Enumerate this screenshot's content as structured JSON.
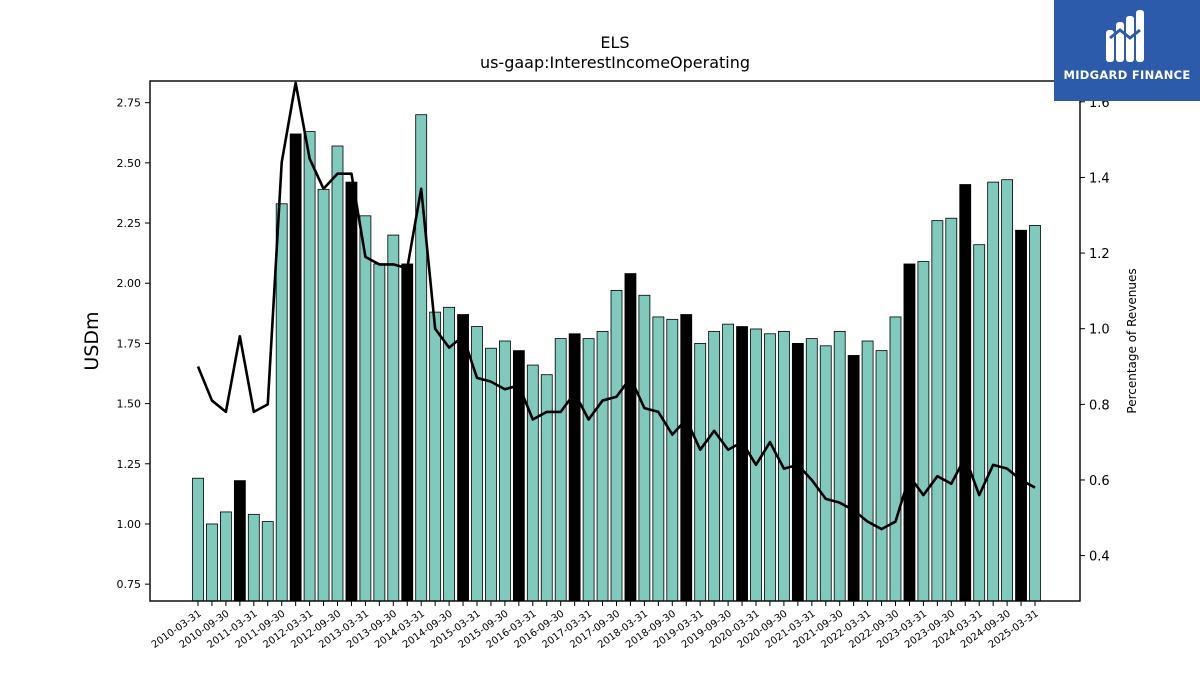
{
  "chart_data": {
    "type": "bar",
    "title": "ELS",
    "subtitle": "us-gaap:InterestIncomeOperating",
    "ylabel": "USDm",
    "y2label": "Percentage of Revenues",
    "ylim": [
      0.68,
      2.84
    ],
    "y2lim": [
      0.28,
      1.655
    ],
    "yticks": [
      0.75,
      1.0,
      1.25,
      1.5,
      1.75,
      2.0,
      2.25,
      2.5,
      2.75
    ],
    "y2ticks": [
      0.4,
      0.6,
      0.8,
      1.0,
      1.2,
      1.4,
      1.6
    ],
    "categories": [
      "2010-03-31",
      "2010-06-30",
      "2010-09-30",
      "2010-12-31",
      "2011-03-31",
      "2011-06-30",
      "2011-09-30",
      "2011-12-31",
      "2012-03-31",
      "2012-06-30",
      "2012-09-30",
      "2012-12-31",
      "2013-03-31",
      "2013-06-30",
      "2013-09-30",
      "2013-12-31",
      "2014-03-31",
      "2014-06-30",
      "2014-09-30",
      "2014-12-31",
      "2015-03-31",
      "2015-06-30",
      "2015-09-30",
      "2015-12-31",
      "2016-03-31",
      "2016-06-30",
      "2016-09-30",
      "2016-12-31",
      "2017-03-31",
      "2017-06-30",
      "2017-09-30",
      "2017-12-31",
      "2018-03-31",
      "2018-06-30",
      "2018-09-30",
      "2018-12-31",
      "2019-03-31",
      "2019-06-30",
      "2019-09-30",
      "2019-12-31",
      "2020-03-31",
      "2020-06-30",
      "2020-09-30",
      "2020-12-31",
      "2021-03-31",
      "2021-06-30",
      "2021-09-30",
      "2021-12-31",
      "2022-03-31",
      "2022-06-30",
      "2022-09-30",
      "2022-12-31",
      "2023-03-31",
      "2023-06-30",
      "2023-09-30",
      "2023-12-31",
      "2024-03-31",
      "2024-06-30",
      "2024-09-30",
      "2024-12-31",
      "2025-03-31"
    ],
    "series": [
      {
        "type": "bar",
        "values": [
          1.19,
          1.0,
          1.05,
          1.18,
          1.04,
          1.01,
          2.33,
          2.62,
          2.63,
          2.39,
          2.57,
          2.42,
          2.28,
          2.08,
          2.2,
          2.08,
          2.7,
          1.88,
          1.9,
          1.87,
          1.82,
          1.73,
          1.76,
          1.72,
          1.66,
          1.62,
          1.77,
          1.79,
          1.77,
          1.8,
          1.97,
          2.04,
          1.95,
          1.86,
          1.85,
          1.87,
          1.75,
          1.8,
          1.83,
          1.82,
          1.81,
          1.79,
          1.8,
          1.75,
          1.77,
          1.74,
          1.8,
          1.7,
          1.76,
          1.72,
          1.86,
          2.08,
          2.09,
          2.26,
          2.27,
          2.41,
          2.16,
          2.42,
          2.43,
          2.22,
          2.24
        ]
      },
      {
        "type": "line",
        "axis": "right",
        "values": [
          0.9,
          0.81,
          0.78,
          0.98,
          0.78,
          0.8,
          1.44,
          1.65,
          1.45,
          1.37,
          1.41,
          1.41,
          1.19,
          1.17,
          1.17,
          1.16,
          1.37,
          1.0,
          0.95,
          0.98,
          0.87,
          0.86,
          0.84,
          0.85,
          0.76,
          0.78,
          0.78,
          0.83,
          0.76,
          0.81,
          0.82,
          0.87,
          0.79,
          0.78,
          0.72,
          0.76,
          0.68,
          0.73,
          0.68,
          0.7,
          0.64,
          0.7,
          0.63,
          0.64,
          0.6,
          0.55,
          0.54,
          0.52,
          0.49,
          0.47,
          0.49,
          0.61,
          0.56,
          0.61,
          0.59,
          0.66,
          0.56,
          0.64,
          0.63,
          0.6,
          0.58
        ]
      }
    ],
    "colors": {
      "bar": "#7fc9bd",
      "bar_highlight": "#000000",
      "bar_edge": "#000000",
      "line": "#000000"
    },
    "highlight_indices": [
      3,
      7,
      11,
      15,
      19,
      23,
      27,
      31,
      35,
      39,
      43,
      47,
      51,
      55,
      59
    ],
    "tick_label_every": 2,
    "grid": false
  },
  "branding": {
    "logo_text": "MIDGARD FINANCE",
    "logo_icon": "midgard-m-icon"
  }
}
